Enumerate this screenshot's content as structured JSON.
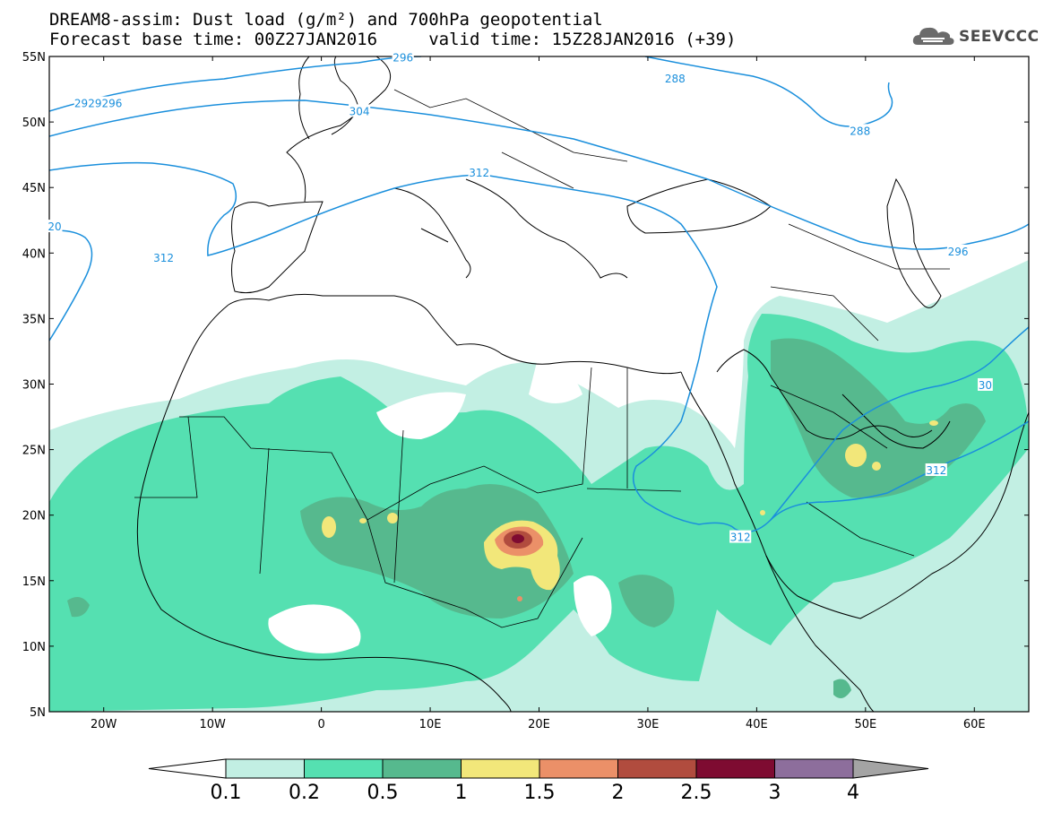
{
  "header": {
    "line1": "DREAM8-assim: Dust load (g/m²) and 700hPa geopotential",
    "line2": "Forecast base time: 00Z27JAN2016     valid time: 15Z28JAN2016 (+39)"
  },
  "logo": {
    "text": "SEEVCCC",
    "icon": "cloud-icon"
  },
  "axes": {
    "lat_labels": [
      "55N",
      "50N",
      "45N",
      "40N",
      "35N",
      "30N",
      "25N",
      "20N",
      "15N",
      "10N",
      "5N"
    ],
    "lon_labels": [
      "20W",
      "10W",
      "0",
      "10E",
      "20E",
      "30E",
      "40E",
      "50E",
      "60E"
    ],
    "lon_range": [
      -25,
      65
    ],
    "lat_range": [
      5,
      55
    ]
  },
  "contour_labels": [
    {
      "text": "2929296",
      "lon": -20.5,
      "lat": 51.4
    },
    {
      "text": "296",
      "lon": 7.5,
      "lat": 54.9
    },
    {
      "text": "288",
      "lon": 32.5,
      "lat": 53.3
    },
    {
      "text": "304",
      "lon": 3.5,
      "lat": 50.8
    },
    {
      "text": "288",
      "lon": 49.5,
      "lat": 49.3
    },
    {
      "text": "312",
      "lon": 14.5,
      "lat": 46.1
    },
    {
      "text": "20",
      "lon": -24.5,
      "lat": 42.0
    },
    {
      "text": "312",
      "lon": -14.5,
      "lat": 39.6
    },
    {
      "text": "296",
      "lon": 58.5,
      "lat": 40.1
    },
    {
      "text": "30",
      "lon": 61.0,
      "lat": 29.9
    },
    {
      "text": "312",
      "lon": 56.5,
      "lat": 23.4
    },
    {
      "text": "312",
      "lon": 38.5,
      "lat": 18.3
    }
  ],
  "colorbar": {
    "labels": [
      "0.1",
      "0.2",
      "0.5",
      "1",
      "1.5",
      "2",
      "2.5",
      "3",
      "4"
    ],
    "colors": [
      "#ffffff",
      "#c2efe3",
      "#55e0b1",
      "#56b98e",
      "#f2e77a",
      "#eb9068",
      "#b14c3e",
      "#7e0b31",
      "#8d6e9c",
      "#a4a4a4"
    ]
  },
  "map_colors": {
    "contour": "#1a8fdc",
    "coast": "#000000"
  }
}
